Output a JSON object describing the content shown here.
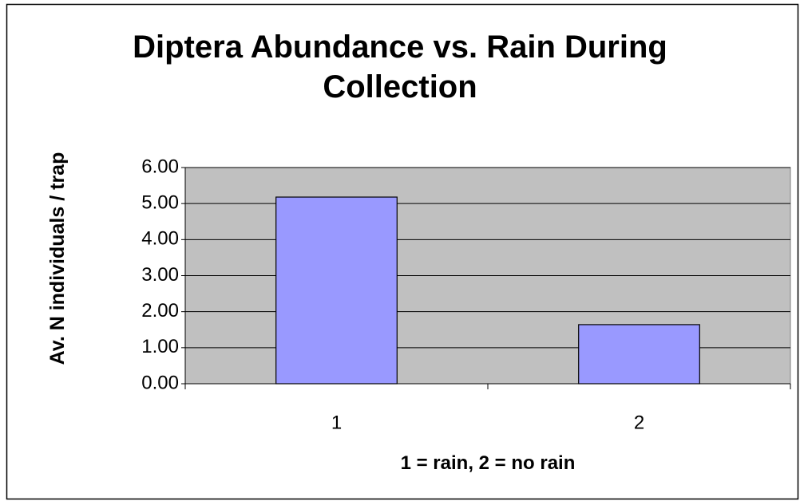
{
  "chart_data": {
    "type": "bar",
    "title": "Diptera Abundance vs. Rain During Collection",
    "x_label": "1 = rain, 2 = no rain",
    "y_label": "Av. N individuals / trap",
    "categories": [
      "1",
      "2"
    ],
    "values": [
      5.18,
      1.64
    ],
    "color": "#9999ff",
    "ylim": [
      0,
      6
    ],
    "yticks": [
      {
        "value": 0,
        "label": "0.00"
      },
      {
        "value": 1,
        "label": "1.00"
      },
      {
        "value": 2,
        "label": "2.00"
      },
      {
        "value": 3,
        "label": "3.00"
      },
      {
        "value": 4,
        "label": "4.00"
      },
      {
        "value": 5,
        "label": "5.00"
      },
      {
        "value": 6,
        "label": "6.00"
      }
    ],
    "grid": true
  }
}
